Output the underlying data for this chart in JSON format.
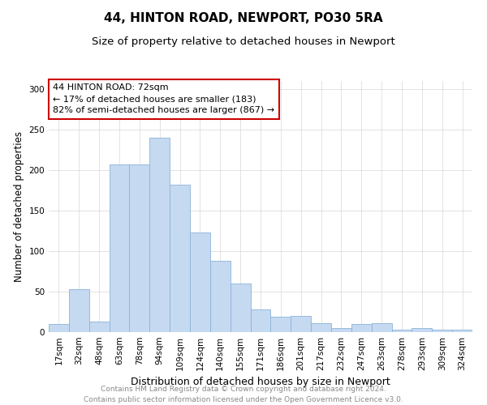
{
  "title1": "44, HINTON ROAD, NEWPORT, PO30 5RA",
  "title2": "Size of property relative to detached houses in Newport",
  "xlabel": "Distribution of detached houses by size in Newport",
  "ylabel": "Number of detached properties",
  "categories": [
    "17sqm",
    "32sqm",
    "48sqm",
    "63sqm",
    "78sqm",
    "94sqm",
    "109sqm",
    "124sqm",
    "140sqm",
    "155sqm",
    "171sqm",
    "186sqm",
    "201sqm",
    "217sqm",
    "232sqm",
    "247sqm",
    "263sqm",
    "278sqm",
    "293sqm",
    "309sqm",
    "324sqm"
  ],
  "values": [
    10,
    53,
    13,
    207,
    207,
    240,
    182,
    123,
    88,
    60,
    28,
    19,
    20,
    11,
    5,
    10,
    11,
    3,
    5,
    3,
    3
  ],
  "bar_color": "#c5d9f0",
  "bar_edge_color": "#8cb4d8",
  "annotation_text": "44 HINTON ROAD: 72sqm\n← 17% of detached houses are smaller (183)\n82% of semi-detached houses are larger (867) →",
  "annotation_box_color": "#ffffff",
  "annotation_box_edge": "#cc0000",
  "ylim": [
    0,
    310
  ],
  "yticks": [
    0,
    50,
    100,
    150,
    200,
    250,
    300
  ],
  "footer_text": "Contains HM Land Registry data © Crown copyright and database right 2024.\nContains public sector information licensed under the Open Government Licence v3.0.",
  "title1_fontsize": 11,
  "title2_fontsize": 9.5,
  "xlabel_fontsize": 9,
  "ylabel_fontsize": 8.5,
  "tick_fontsize": 7.5,
  "annotation_fontsize": 8,
  "footer_fontsize": 6.5
}
